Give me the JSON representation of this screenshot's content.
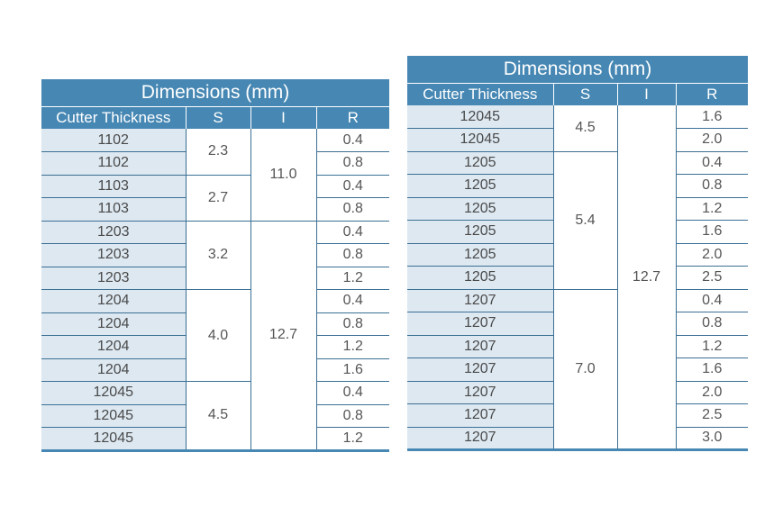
{
  "tables": [
    {
      "title": "Dimensions (mm)",
      "headers": [
        "Cutter Thickness",
        "S",
        "I",
        "R"
      ],
      "cutter_thickness": [
        "1102",
        "1102",
        "1103",
        "1103",
        "1203",
        "1203",
        "1203",
        "1204",
        "1204",
        "1204",
        "1204",
        "12045",
        "12045",
        "12045"
      ],
      "s_groups": [
        {
          "value": "2.3",
          "rows": 2
        },
        {
          "value": "2.7",
          "rows": 2
        },
        {
          "value": "3.2",
          "rows": 3
        },
        {
          "value": "4.0",
          "rows": 4
        },
        {
          "value": "4.5",
          "rows": 3
        }
      ],
      "i_groups": [
        {
          "value": "11.0",
          "rows": 4
        },
        {
          "value": "12.7",
          "rows": 10
        }
      ],
      "r": [
        "0.4",
        "0.8",
        "0.4",
        "0.8",
        "0.4",
        "0.8",
        "1.2",
        "0.4",
        "0.8",
        "1.2",
        "1.6",
        "0.4",
        "0.8",
        "1.2"
      ]
    },
    {
      "title": "Dimensions (mm)",
      "headers": [
        "Cutter Thickness",
        "S",
        "I",
        "R"
      ],
      "cutter_thickness": [
        "12045",
        "12045",
        "1205",
        "1205",
        "1205",
        "1205",
        "1205",
        "1205",
        "1207",
        "1207",
        "1207",
        "1207",
        "1207",
        "1207",
        "1207"
      ],
      "s_groups": [
        {
          "value": "4.5",
          "rows": 2
        },
        {
          "value": "5.4",
          "rows": 6
        },
        {
          "value": "7.0",
          "rows": 7
        }
      ],
      "i_groups": [
        {
          "value": "12.7",
          "rows": 15
        }
      ],
      "r": [
        "1.6",
        "2.0",
        "0.4",
        "0.8",
        "1.2",
        "1.6",
        "2.0",
        "2.5",
        "0.4",
        "0.8",
        "1.2",
        "1.6",
        "2.0",
        "2.5",
        "3.0"
      ]
    }
  ]
}
